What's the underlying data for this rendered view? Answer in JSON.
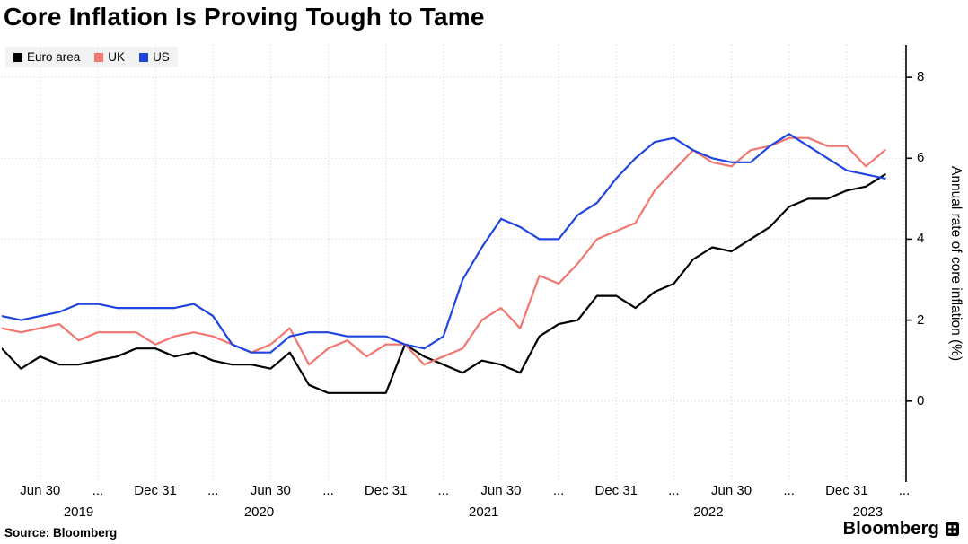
{
  "title": "Core Inflation Is Proving Tough to Tame",
  "legend": [
    {
      "label": "Euro area",
      "color": "#000000"
    },
    {
      "label": "UK",
      "color": "#f2766f"
    },
    {
      "label": "US",
      "color": "#2044df"
    }
  ],
  "y_axis": {
    "label": "Annual rate of core inflation (%)",
    "ticks": [
      0,
      2,
      4,
      6,
      8
    ]
  },
  "x_axis": {
    "ticks": [
      {
        "label": "Jun 30",
        "month": 2
      },
      {
        "label": "...",
        "month": 5
      },
      {
        "label": "Dec 31",
        "month": 8
      },
      {
        "label": "...",
        "month": 11
      },
      {
        "label": "Jun 30",
        "month": 14
      },
      {
        "label": "...",
        "month": 17
      },
      {
        "label": "Dec 31",
        "month": 20
      },
      {
        "label": "...",
        "month": 23
      },
      {
        "label": "Jun 30",
        "month": 26
      },
      {
        "label": "...",
        "month": 29
      },
      {
        "label": "Dec 31",
        "month": 32
      },
      {
        "label": "...",
        "month": 35
      },
      {
        "label": "Jun 30",
        "month": 38
      },
      {
        "label": "...",
        "month": 41
      },
      {
        "label": "Dec 31",
        "month": 44
      },
      {
        "label": "...",
        "month": 47
      }
    ],
    "years": [
      {
        "text": "2019",
        "month": 4.0
      },
      {
        "text": "2020",
        "month": 13.4
      },
      {
        "text": "2021",
        "month": 25.1
      },
      {
        "text": "2022",
        "month": 36.8
      },
      {
        "text": "2023",
        "month": 45.1
      }
    ]
  },
  "source_label": "Source: Bloomberg",
  "brand": {
    "wordmark": "Bloomberg",
    "icon": "terminal-grid-icon"
  },
  "colors": {
    "grid": "#cfcfcf",
    "axis": "#000000",
    "legend_bg": "#f2f2f2"
  },
  "chart_data": {
    "type": "line",
    "title": "Core Inflation Is Proving Tough to Tame",
    "xlabel": "",
    "ylabel": "Annual rate of core inflation (%)",
    "ylim": [
      -2,
      8.8
    ],
    "yticks": [
      0,
      2,
      4,
      6,
      8
    ],
    "x_domain_months": 47,
    "grid": "dotted",
    "legend_position": "top-left",
    "x": [
      "2019-04",
      "2019-05",
      "2019-06",
      "2019-07",
      "2019-08",
      "2019-09",
      "2019-10",
      "2019-11",
      "2019-12",
      "2020-01",
      "2020-02",
      "2020-03",
      "2020-04",
      "2020-05",
      "2020-06",
      "2020-07",
      "2020-08",
      "2020-09",
      "2020-10",
      "2020-11",
      "2020-12",
      "2021-01",
      "2021-02",
      "2021-03",
      "2021-04",
      "2021-05",
      "2021-06",
      "2021-07",
      "2021-08",
      "2021-09",
      "2021-10",
      "2021-11",
      "2021-12",
      "2022-01",
      "2022-02",
      "2022-03",
      "2022-04",
      "2022-05",
      "2022-06",
      "2022-07",
      "2022-08",
      "2022-09",
      "2022-10",
      "2022-11",
      "2022-12",
      "2023-01",
      "2023-02"
    ],
    "series": [
      {
        "name": "Euro area",
        "color": "#000000",
        "values": [
          1.3,
          0.8,
          1.1,
          0.9,
          0.9,
          1.0,
          1.1,
          1.3,
          1.3,
          1.1,
          1.2,
          1.0,
          0.9,
          0.9,
          0.8,
          1.2,
          0.4,
          0.2,
          0.2,
          0.2,
          0.2,
          1.4,
          1.1,
          0.9,
          0.7,
          1.0,
          0.9,
          0.7,
          1.6,
          1.9,
          2.0,
          2.6,
          2.6,
          2.3,
          2.7,
          2.9,
          3.5,
          3.8,
          3.7,
          4.0,
          4.3,
          4.8,
          5.0,
          5.0,
          5.2,
          5.3,
          5.6
        ]
      },
      {
        "name": "UK",
        "color": "#f2766f",
        "values": [
          1.8,
          1.7,
          1.8,
          1.9,
          1.5,
          1.7,
          1.7,
          1.7,
          1.4,
          1.6,
          1.7,
          1.6,
          1.4,
          1.2,
          1.4,
          1.8,
          0.9,
          1.3,
          1.5,
          1.1,
          1.4,
          1.4,
          0.9,
          1.1,
          1.3,
          2.0,
          2.3,
          1.8,
          3.1,
          2.9,
          3.4,
          4.0,
          4.2,
          4.4,
          5.2,
          5.7,
          6.2,
          5.9,
          5.8,
          6.2,
          6.3,
          6.5,
          6.5,
          6.3,
          6.3,
          5.8,
          6.2
        ]
      },
      {
        "name": "US",
        "color": "#2044df",
        "values": [
          2.1,
          2.0,
          2.1,
          2.2,
          2.4,
          2.4,
          2.3,
          2.3,
          2.3,
          2.3,
          2.4,
          2.1,
          1.4,
          1.2,
          1.2,
          1.6,
          1.7,
          1.7,
          1.6,
          1.6,
          1.6,
          1.4,
          1.3,
          1.6,
          3.0,
          3.8,
          4.5,
          4.3,
          4.0,
          4.0,
          4.6,
          4.9,
          5.5,
          6.0,
          6.4,
          6.5,
          6.2,
          6.0,
          5.9,
          5.9,
          6.3,
          6.6,
          6.3,
          6.0,
          5.7,
          5.6,
          5.5
        ]
      }
    ]
  }
}
